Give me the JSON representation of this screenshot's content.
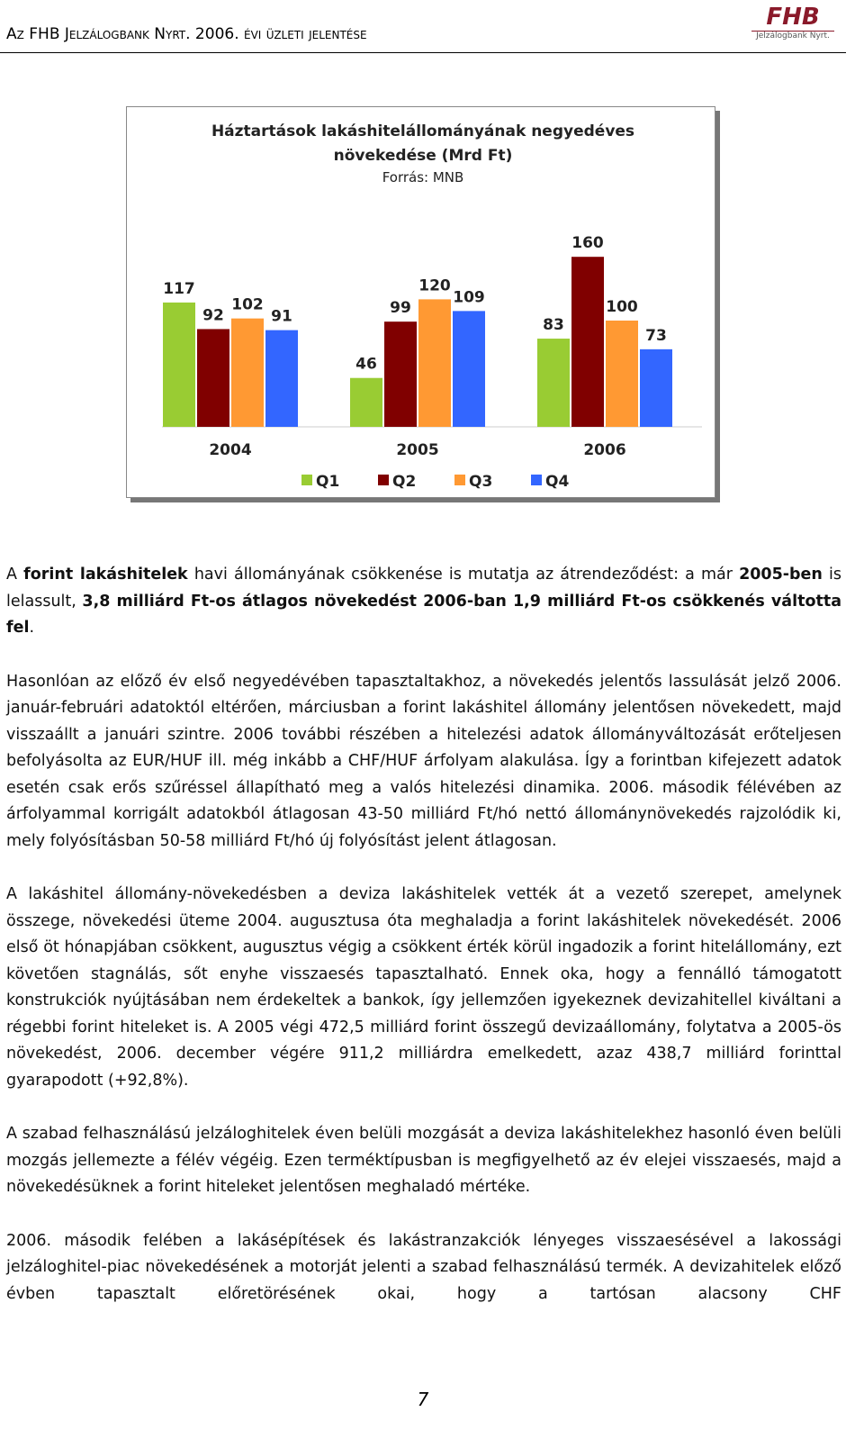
{
  "header": {
    "title": "Az FHB Jelzálogbank Nyrt. 2006. évi üzleti jelentése",
    "logo": "FHB",
    "logo_sub": "Jelzálogbank Nyrt."
  },
  "chart_data": {
    "type": "bar",
    "title": "Háztartások lakáshitelállományának negyedéves növekedése (Mrd Ft)",
    "subtitle": "Forrás: MNB",
    "categories": [
      "2004",
      "2005",
      "2006"
    ],
    "series": [
      {
        "name": "Q1",
        "color": "#99cc33",
        "values": [
          117,
          46,
          83
        ]
      },
      {
        "name": "Q2",
        "color": "#800000",
        "values": [
          92,
          99,
          160
        ]
      },
      {
        "name": "Q3",
        "color": "#ff9933",
        "values": [
          102,
          120,
          100
        ]
      },
      {
        "name": "Q4",
        "color": "#3366ff",
        "values": [
          91,
          109,
          73
        ]
      }
    ]
  },
  "paragraphs": [
    {
      "runs": [
        {
          "text": "A "
        },
        {
          "text": "forint lakáshitelek",
          "bold": true
        },
        {
          "text": " havi állományának csökkenése is mutatja az átrendeződést: a már "
        },
        {
          "text": "2005-ben",
          "bold": true
        },
        {
          "text": " is lelassult, "
        },
        {
          "text": "3,8 milliárd Ft-os átlagos növekedést 2006-ban 1,9 milliárd Ft-os csökkenés váltotta fel",
          "bold": true
        },
        {
          "text": "."
        }
      ]
    },
    {
      "runs": [
        {
          "text": "Hasonlóan az előző év első negyedévében tapasztaltakhoz, a növekedés jelentős lassulását jelző 2006. január-februári adatoktól eltérően, márciusban a forint lakáshitel állomány jelentősen növekedett, majd visszaállt a januári szintre. 2006 további részében a hitelezési adatok állományváltozását erőteljesen befolyásolta az EUR/HUF ill. még inkább a CHF/HUF árfolyam alakulása. Így a forintban kifejezett adatok esetén csak erős szűréssel állapítható meg a valós hitelezési dinamika. 2006. második félévében az árfolyammal korrigált adatokból átlagosan 43-50 milliárd Ft/hó nettó állománynövekedés rajzolódik ki, mely folyósításban 50-58 milliárd Ft/hó új folyósítást jelent átlagosan."
        }
      ]
    },
    {
      "runs": [
        {
          "text": "A lakáshitel állomány-növekedésben a deviza lakáshitelek vették át a vezető szerepet, amelynek összege, növekedési üteme 2004. augusztusa óta meghaladja a forint lakáshitelek növekedését. 2006 első öt hónapjában csökkent, augusztus végig a csökkent érték körül ingadozik a forint hitelállomány, ezt követően stagnálás, sőt enyhe visszaesés tapasztalható. Ennek oka, hogy a fennálló támogatott konstrukciók nyújtásában nem érdekeltek a bankok, így jellemzően igyekeznek devizahitellel kiváltani a régebbi forint hiteleket is. A 2005 végi 472,5 milliárd forint összegű devizaállomány, folytatva a 2005-ös növekedést, 2006. december végére 911,2 milliárdra emelkedett, azaz 438,7 milliárd forinttal gyarapodott (+92,8%)."
        }
      ]
    },
    {
      "runs": [
        {
          "text": "A szabad felhasználású jelzáloghitelek éven belüli mozgását a deviza lakáshitelekhez hasonló éven belüli mozgás jellemezte a félév végéig. Ezen terméktípusban is megfigyelhető az év elejei visszaesés, majd a növekedésüknek a forint hiteleket jelentősen meghaladó mértéke."
        }
      ]
    },
    {
      "runs": [
        {
          "text": "2006. második felében a lakásépítések és lakástranzakciók lényeges visszaesésével a lakossági jelzáloghitel-piac növekedésének a motorját jelenti a szabad felhasználású termék. A devizahitelek előző évben tapasztalt előretörésének okai, hogy a tartósan alacsony CHF"
        }
      ]
    }
  ],
  "page_number": "7"
}
